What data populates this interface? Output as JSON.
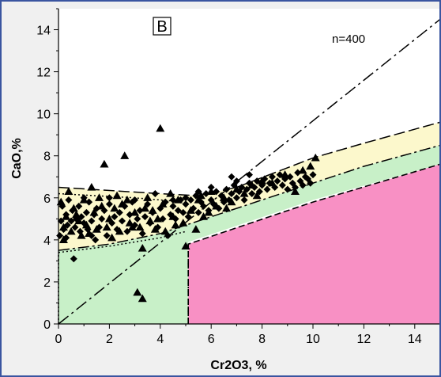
{
  "chart_data": {
    "type": "scatter",
    "panel_label": "B",
    "annotation": "n=400",
    "xlabel": "Cr2O3, %",
    "ylabel": "CaO,%",
    "xlim": [
      0,
      15
    ],
    "ylim": [
      0,
      15
    ],
    "xticks": [
      "0",
      "2",
      "4",
      "6",
      "8",
      "10",
      "12",
      "14"
    ],
    "yticks": [
      "0",
      "2",
      "4",
      "6",
      "8",
      "10",
      "12",
      "14"
    ],
    "grid": false,
    "colors": {
      "yellow_field": "#fcf8cc",
      "green_field": "#c8f0c8",
      "pink_field": "#f890c4",
      "frame": "#3a55a0",
      "marker": "#000000"
    },
    "fields": {
      "yellow": [
        [
          0,
          6.5
        ],
        [
          4,
          6.2
        ],
        [
          5.5,
          6.1
        ],
        [
          7,
          6.5
        ],
        [
          8.5,
          7.2
        ],
        [
          10,
          7.9
        ],
        [
          12,
          8.6
        ],
        [
          15,
          9.6
        ],
        [
          15,
          8.5
        ],
        [
          12,
          7.5
        ],
        [
          9,
          6.3
        ],
        [
          6,
          5.1
        ],
        [
          4,
          4.3
        ],
        [
          2,
          3.8
        ],
        [
          0,
          3.5
        ]
      ],
      "green": [
        [
          0,
          3.5
        ],
        [
          2,
          3.8
        ],
        [
          4,
          4.3
        ],
        [
          6,
          5.1
        ],
        [
          9,
          6.3
        ],
        [
          12,
          7.5
        ],
        [
          15,
          8.5
        ],
        [
          15,
          7.6
        ],
        [
          10,
          5.9
        ],
        [
          5.1,
          3.9
        ],
        [
          5.1,
          0
        ],
        [
          0,
          0
        ]
      ],
      "pink": [
        [
          5.1,
          3.8
        ],
        [
          10,
          5.8
        ],
        [
          15,
          7.6
        ],
        [
          15,
          0
        ],
        [
          5.1,
          0
        ]
      ]
    },
    "lines": {
      "upper_dashed": [
        [
          0,
          6.5
        ],
        [
          4,
          6.2
        ],
        [
          5.5,
          6.1
        ],
        [
          7,
          6.5
        ],
        [
          8.5,
          7.2
        ],
        [
          10,
          7.9
        ],
        [
          12,
          8.6
        ],
        [
          15,
          9.6
        ]
      ],
      "dotted_upper": [
        [
          0,
          6.2
        ],
        [
          3,
          6.0
        ],
        [
          5,
          5.8
        ]
      ],
      "middle_dashed": [
        [
          0,
          3.5
        ],
        [
          2,
          3.8
        ],
        [
          4,
          4.3
        ],
        [
          6,
          5.1
        ],
        [
          9,
          6.3
        ],
        [
          12,
          7.5
        ],
        [
          15,
          8.5
        ]
      ],
      "dotted_lower": [
        [
          0,
          3.4
        ],
        [
          2,
          3.7
        ],
        [
          4,
          4.1
        ],
        [
          5,
          4.4
        ]
      ],
      "pink_boundary": [
        [
          5.1,
          0
        ],
        [
          5.1,
          3.8
        ],
        [
          10,
          5.8
        ],
        [
          15,
          7.6
        ]
      ],
      "green_left_dotted": [
        [
          0,
          0
        ],
        [
          0,
          3.4
        ]
      ],
      "green_right_dotted": [
        [
          5.1,
          0
        ],
        [
          5.1,
          3.8
        ]
      ],
      "diagonal_dashdot": [
        [
          0,
          0
        ],
        [
          15,
          14.5
        ]
      ]
    },
    "series": [
      {
        "marker": "triangle",
        "points": [
          [
            0.1,
            5.8
          ],
          [
            0.2,
            4.6
          ],
          [
            0.3,
            5.1
          ],
          [
            0.5,
            4.4
          ],
          [
            0.6,
            5.5
          ],
          [
            0.8,
            4.9
          ],
          [
            1.0,
            5.9
          ],
          [
            1.1,
            4.7
          ],
          [
            1.3,
            6.5
          ],
          [
            1.4,
            5.3
          ],
          [
            1.5,
            4.5
          ],
          [
            1.7,
            5.6
          ],
          [
            1.8,
            7.6
          ],
          [
            1.9,
            4.6
          ],
          [
            2.0,
            5.0
          ],
          [
            2.2,
            5.5
          ],
          [
            2.4,
            4.4
          ],
          [
            2.6,
            8.0
          ],
          [
            2.7,
            5.9
          ],
          [
            2.8,
            4.8
          ],
          [
            3.0,
            5.3
          ],
          [
            3.1,
            1.5
          ],
          [
            3.2,
            4.6
          ],
          [
            3.3,
            1.2
          ],
          [
            3.3,
            3.6
          ],
          [
            3.4,
            5.5
          ],
          [
            3.6,
            4.9
          ],
          [
            3.8,
            4.5
          ],
          [
            4.0,
            9.3
          ],
          [
            4.1,
            5.7
          ],
          [
            4.2,
            4.4
          ],
          [
            4.5,
            5.1
          ],
          [
            4.7,
            5.9
          ],
          [
            4.9,
            4.8
          ],
          [
            5.0,
            3.7
          ],
          [
            5.2,
            5.4
          ],
          [
            5.5,
            5.9
          ],
          [
            5.7,
            5.1
          ],
          [
            6.0,
            6.3
          ],
          [
            6.2,
            5.6
          ],
          [
            6.5,
            6.0
          ],
          [
            6.8,
            5.8
          ],
          [
            7.0,
            6.4
          ],
          [
            7.3,
            6.2
          ],
          [
            7.6,
            6.6
          ],
          [
            8.0,
            6.8
          ],
          [
            8.4,
            6.7
          ],
          [
            8.9,
            7.1
          ],
          [
            9.3,
            6.3
          ],
          [
            9.6,
            7.3
          ],
          [
            9.9,
            7.5
          ],
          [
            10.1,
            7.9
          ],
          [
            0.4,
            6.3
          ],
          [
            0.9,
            4.2
          ],
          [
            1.6,
            6.0
          ],
          [
            2.3,
            6.1
          ],
          [
            2.9,
            4.6
          ],
          [
            3.5,
            6.0
          ],
          [
            3.9,
            5.0
          ],
          [
            4.4,
            6.2
          ],
          [
            5.4,
            4.5
          ],
          [
            5.9,
            5.3
          ],
          [
            6.6,
            5.5
          ],
          [
            7.8,
            6.1
          ],
          [
            0.2,
            4.0
          ],
          [
            0.7,
            5.2
          ],
          [
            1.2,
            4.3
          ],
          [
            2.1,
            4.1
          ],
          [
            2.5,
            5.7
          ],
          [
            3.7,
            5.4
          ],
          [
            4.6,
            4.7
          ],
          [
            5.6,
            6.1
          ]
        ]
      },
      {
        "marker": "diamond",
        "points": [
          [
            0.05,
            4.2
          ],
          [
            0.1,
            4.9
          ],
          [
            0.15,
            5.6
          ],
          [
            0.2,
            4.5
          ],
          [
            0.3,
            5.2
          ],
          [
            0.35,
            4.7
          ],
          [
            0.4,
            5.9
          ],
          [
            0.5,
            4.9
          ],
          [
            0.55,
            5.4
          ],
          [
            0.6,
            3.1
          ],
          [
            0.65,
            4.6
          ],
          [
            0.7,
            5.0
          ],
          [
            0.8,
            5.6
          ],
          [
            0.85,
            4.4
          ],
          [
            0.9,
            5.1
          ],
          [
            1.0,
            4.8
          ],
          [
            1.1,
            5.3
          ],
          [
            1.15,
            4.5
          ],
          [
            1.2,
            5.8
          ],
          [
            1.3,
            4.9
          ],
          [
            1.4,
            5.2
          ],
          [
            1.45,
            4.0
          ],
          [
            1.5,
            5.5
          ],
          [
            1.6,
            4.6
          ],
          [
            1.7,
            5.0
          ],
          [
            1.8,
            5.4
          ],
          [
            1.9,
            4.2
          ],
          [
            2.0,
            5.7
          ],
          [
            2.1,
            4.8
          ],
          [
            2.2,
            5.1
          ],
          [
            2.3,
            4.5
          ],
          [
            2.4,
            5.3
          ],
          [
            2.5,
            4.9
          ],
          [
            2.6,
            5.6
          ],
          [
            2.7,
            4.4
          ],
          [
            2.8,
            5.2
          ],
          [
            2.9,
            5.8
          ],
          [
            3.0,
            4.7
          ],
          [
            3.1,
            5.0
          ],
          [
            3.2,
            5.4
          ],
          [
            3.3,
            4.3
          ],
          [
            3.4,
            5.1
          ],
          [
            3.5,
            5.7
          ],
          [
            3.6,
            4.8
          ],
          [
            3.7,
            5.3
          ],
          [
            3.8,
            6.2
          ],
          [
            3.9,
            4.6
          ],
          [
            4.0,
            5.5
          ],
          [
            4.1,
            5.0
          ],
          [
            4.2,
            5.8
          ],
          [
            4.3,
            4.2
          ],
          [
            4.4,
            5.2
          ],
          [
            4.5,
            5.6
          ],
          [
            4.6,
            5.0
          ],
          [
            4.7,
            5.4
          ],
          [
            4.8,
            5.9
          ],
          [
            4.9,
            5.3
          ],
          [
            5.0,
            5.7
          ],
          [
            5.1,
            5.1
          ],
          [
            5.2,
            5.9
          ],
          [
            5.3,
            5.5
          ],
          [
            5.4,
            6.1
          ],
          [
            5.5,
            5.3
          ],
          [
            5.6,
            5.8
          ],
          [
            5.7,
            5.6
          ],
          [
            5.8,
            6.2
          ],
          [
            5.9,
            5.4
          ],
          [
            6.0,
            5.9
          ],
          [
            6.1,
            5.7
          ],
          [
            6.2,
            6.3
          ],
          [
            6.3,
            5.5
          ],
          [
            6.4,
            6.1
          ],
          [
            6.5,
            5.8
          ],
          [
            6.6,
            6.4
          ],
          [
            6.7,
            5.9
          ],
          [
            6.8,
            6.2
          ],
          [
            6.9,
            6.6
          ],
          [
            7.0,
            6.0
          ],
          [
            7.1,
            6.3
          ],
          [
            7.2,
            6.5
          ],
          [
            7.3,
            5.9
          ],
          [
            7.4,
            6.4
          ],
          [
            7.5,
            6.7
          ],
          [
            7.6,
            6.2
          ],
          [
            7.7,
            6.5
          ],
          [
            7.8,
            6.8
          ],
          [
            7.9,
            6.3
          ],
          [
            8.0,
            6.6
          ],
          [
            8.1,
            6.9
          ],
          [
            8.2,
            6.4
          ],
          [
            8.3,
            6.7
          ],
          [
            8.4,
            7.0
          ],
          [
            8.5,
            6.5
          ],
          [
            8.6,
            6.8
          ],
          [
            8.7,
            7.1
          ],
          [
            8.8,
            6.6
          ],
          [
            8.9,
            6.9
          ],
          [
            9.0,
            6.4
          ],
          [
            9.1,
            7.0
          ],
          [
            9.2,
            6.7
          ],
          [
            9.3,
            6.5
          ],
          [
            9.4,
            7.2
          ],
          [
            9.5,
            6.8
          ],
          [
            9.6,
            6.6
          ],
          [
            9.7,
            7.0
          ],
          [
            9.8,
            6.9
          ],
          [
            9.9,
            6.7
          ],
          [
            10.0,
            7.1
          ],
          [
            6.8,
            7.0
          ],
          [
            7.0,
            6.8
          ],
          [
            7.5,
            7.1
          ],
          [
            5.0,
            6.0
          ],
          [
            5.5,
            6.3
          ],
          [
            6.0,
            6.5
          ],
          [
            4.5,
            5.9
          ],
          [
            3.0,
            5.9
          ],
          [
            2.0,
            6.0
          ],
          [
            1.0,
            6.0
          ],
          [
            0.3,
            4.1
          ],
          [
            1.3,
            4.2
          ]
        ]
      }
    ]
  }
}
